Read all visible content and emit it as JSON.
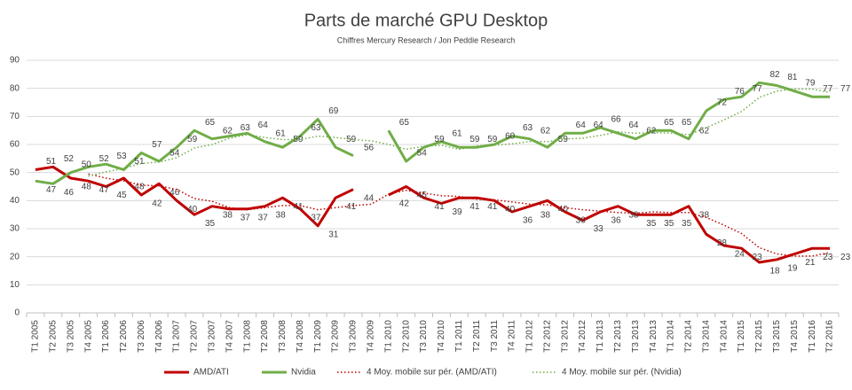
{
  "chart_data": {
    "type": "line",
    "title": "Parts de marché GPU Desktop",
    "subtitle": "Chiffres Mercury Research / Jon Peddie Research",
    "categories": [
      "T1 2005",
      "T2 2005",
      "T3 2005",
      "T4 2005",
      "T1 2006",
      "T2 2006",
      "T3 2006",
      "T4 2006",
      "T1 2007",
      "T2 2007",
      "T3 2007",
      "T4 2007",
      "T1 2008",
      "T2 2008",
      "T3 2008",
      "T4 2008",
      "T1 2009",
      "T2 2009",
      "T3 2009",
      "T4 2009",
      "T1 2010",
      "T2 2010",
      "T3 2010",
      "T4 2010",
      "T1 2011",
      "T2 2011",
      "T3 2011",
      "T4 2011",
      "T1 2012",
      "T2 2012",
      "T3 2012",
      "T4 2012",
      "T1 2013",
      "T2 2013",
      "T3 2013",
      "T4 2013",
      "T1 2014",
      "T2 2014",
      "T3 2014",
      "T4 2014",
      "T1 2015",
      "T2 2015",
      "T3 2015",
      "T4 2015",
      "T1 2016",
      "T2 2016"
    ],
    "series": [
      {
        "name": "AMD/ATI",
        "color": "#c00000",
        "line_style": "solid",
        "data_labels": true,
        "values": [
          51,
          52,
          48,
          47,
          45,
          48,
          42,
          46,
          40,
          35,
          38,
          37,
          37,
          38,
          41,
          37,
          31,
          41,
          44,
          null,
          42,
          45,
          41,
          39,
          41,
          41,
          40,
          36,
          38,
          40,
          36,
          33,
          36,
          38,
          35,
          35,
          35,
          38,
          28,
          24,
          23,
          18,
          19,
          21,
          23,
          23
        ]
      },
      {
        "name": "Nvidia",
        "color": "#70ad47",
        "line_style": "solid",
        "data_labels": true,
        "values": [
          47,
          46,
          50,
          52,
          53,
          51,
          57,
          54,
          59,
          65,
          62,
          63,
          64,
          61,
          59,
          63,
          69,
          59,
          56,
          null,
          65,
          54,
          59,
          61,
          59,
          59,
          60,
          63,
          62,
          59,
          64,
          64,
          66,
          64,
          62,
          65,
          65,
          62,
          72,
          76,
          77,
          82,
          81,
          79,
          77,
          77
        ]
      },
      {
        "name": "4 Moy. mobile sur pér. (AMD/ATI)",
        "color": "#c00000",
        "line_style": "dotted",
        "data_labels": false,
        "values": [
          null,
          null,
          null,
          49.5,
          48,
          47,
          45.5,
          45.25,
          44,
          40.75,
          39.75,
          37.5,
          36.75,
          37.5,
          38.25,
          38.25,
          36.75,
          37.5,
          38.25,
          38.67,
          42.33,
          43.67,
          42.67,
          41.75,
          41.5,
          40.5,
          40.25,
          39.5,
          38.75,
          38.5,
          37.5,
          36.75,
          36.25,
          35.75,
          35.5,
          36,
          35.75,
          35.75,
          34,
          31.25,
          28.25,
          23.25,
          21,
          20.25,
          20.25,
          21.5
        ]
      },
      {
        "name": "4 Moy. mobile sur pér. (Nvidia)",
        "color": "#70ad47",
        "line_style": "dotted",
        "data_labels": false,
        "values": [
          null,
          null,
          null,
          48.75,
          50.25,
          51.5,
          53.25,
          53.75,
          55.25,
          58.75,
          60,
          62.25,
          63.5,
          62.5,
          61.75,
          61.75,
          63,
          62.5,
          61.75,
          61.33,
          60,
          58.33,
          59.33,
          59.75,
          58.25,
          59.5,
          59.75,
          60.25,
          61,
          61,
          62,
          62.25,
          63.25,
          64.5,
          64,
          64.25,
          64,
          63.5,
          66,
          68.75,
          71.75,
          76.75,
          79,
          79.75,
          79.75,
          78.5
        ]
      }
    ],
    "ylim": [
      0,
      90
    ],
    "yticks": [
      0,
      10,
      20,
      30,
      40,
      50,
      60,
      70,
      80,
      90
    ],
    "grid": true,
    "legend": "bottom"
  }
}
